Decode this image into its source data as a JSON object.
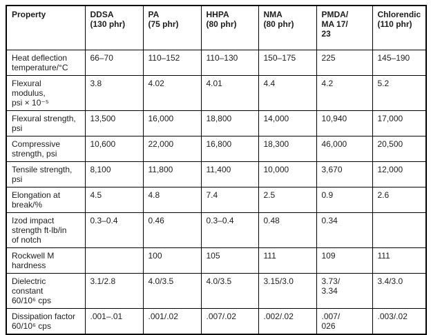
{
  "page": {
    "background": "#ffffff",
    "text_color": "#1c1c1c",
    "border_color": "#000000"
  },
  "table": {
    "columns": [
      "Property",
      "DDSA\n(130 phr)",
      "PA\n(75 phr)",
      "HHPA\n(80 phr)",
      "NMA\n(80 phr)",
      "PMDA/\nMA 17/\n23",
      "Chlorendic\n(110 phr)"
    ],
    "rows": [
      {
        "property": "Heat deflection\ntemperature/°C",
        "lines": 2,
        "values": [
          "66–70",
          "110–152",
          "110–130",
          "150–175",
          "225",
          "145–190"
        ]
      },
      {
        "property": "Flexural\nmodulus,\npsi × 10⁻⁵",
        "lines": 3,
        "values": [
          "3.8",
          "4.02",
          "4.01",
          "4.4",
          "4.2",
          "5.2"
        ]
      },
      {
        "property": "Flexural strength,\npsi",
        "lines": 2,
        "values": [
          "13,500",
          "16,000",
          "18,800",
          "14,000",
          "10,940",
          "17,000"
        ]
      },
      {
        "property": "Compressive\nstrength, psi",
        "lines": 2,
        "values": [
          "10,600",
          "22,000",
          "16,800",
          "18,300",
          "46,000",
          "20,500"
        ]
      },
      {
        "property": "Tensile strength,\npsi",
        "lines": 2,
        "values": [
          "8,100",
          "11,800",
          "11,400",
          "10,000",
          "3,670",
          "12,000"
        ]
      },
      {
        "property": "Elongation at\nbreak/%",
        "lines": 2,
        "values": [
          "4.5",
          "4.8",
          "7.4",
          "2.5",
          "0.9",
          "2.6"
        ]
      },
      {
        "property": "Izod impact\nstrength ft-lb/in\nof notch",
        "lines": 3,
        "values": [
          "0.3–0.4",
          "0.46",
          "0.3–0.4",
          "0.48",
          "0.34",
          ""
        ]
      },
      {
        "property": "Rockwell M\nhardness",
        "lines": 2,
        "values": [
          "",
          "100",
          "105",
          "111",
          "109",
          "111"
        ]
      },
      {
        "property": "Dielectric\nconstant\n60/10⁶ cps",
        "lines": 3,
        "values": [
          "3.1/2.8",
          "4.0/3.5",
          "4.0/3.5",
          "3.15/3.0",
          "3.73/\n3.34",
          "3.4/3.0"
        ]
      },
      {
        "property": "Dissipation factor\n60/10⁶ cps",
        "lines": 2,
        "values": [
          ".001–.01",
          ".001/.02",
          ".007/.02",
          ".002/.02",
          ".007/\n026",
          ".003/.02"
        ]
      }
    ]
  }
}
